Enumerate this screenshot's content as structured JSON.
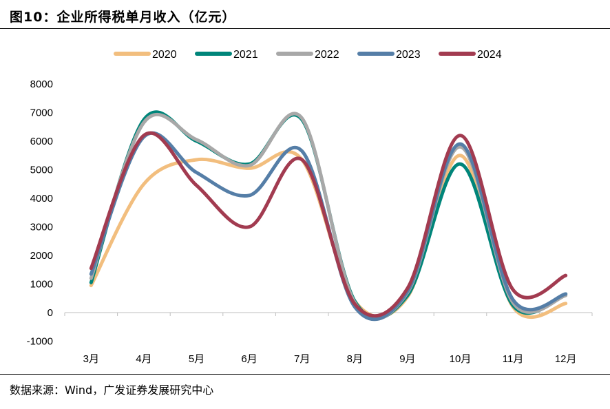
{
  "header": {
    "title": "图10：企业所得税单月收入（亿元）"
  },
  "footer": {
    "source": "数据来源：Wind，广发证券发展研究中心"
  },
  "chart_data": {
    "type": "line",
    "title": "图10：企业所得税单月收入（亿元）",
    "xlabel": "",
    "ylabel": "",
    "categories": [
      "3月",
      "4月",
      "5月",
      "6月",
      "7月",
      "8月",
      "9月",
      "10月",
      "11月",
      "12月"
    ],
    "yticks": [
      -1000,
      0,
      1000,
      2000,
      3000,
      4000,
      5000,
      6000,
      7000,
      8000
    ],
    "ylim": [
      -1000,
      8000
    ],
    "grid": false,
    "legend_position": "top",
    "series": [
      {
        "name": "2020",
        "color": "#F2BE7E",
        "values": [
          950,
          4500,
          5350,
          5050,
          5350,
          400,
          550,
          5500,
          200,
          320
        ]
      },
      {
        "name": "2021",
        "color": "#00857A",
        "values": [
          1050,
          6750,
          6000,
          5200,
          6750,
          400,
          600,
          5200,
          250,
          650
        ]
      },
      {
        "name": "2022",
        "color": "#A8A8A8",
        "values": [
          1200,
          6650,
          6050,
          5150,
          6800,
          350,
          700,
          5800,
          350,
          600
        ]
      },
      {
        "name": "2023",
        "color": "#557EA7",
        "values": [
          1350,
          6150,
          4900,
          4100,
          5650,
          200,
          750,
          5900,
          450,
          650
        ]
      },
      {
        "name": "2024",
        "color": "#A23B50",
        "values": [
          1550,
          6200,
          4450,
          3000,
          5350,
          300,
          850,
          6200,
          800,
          1300
        ]
      }
    ]
  }
}
